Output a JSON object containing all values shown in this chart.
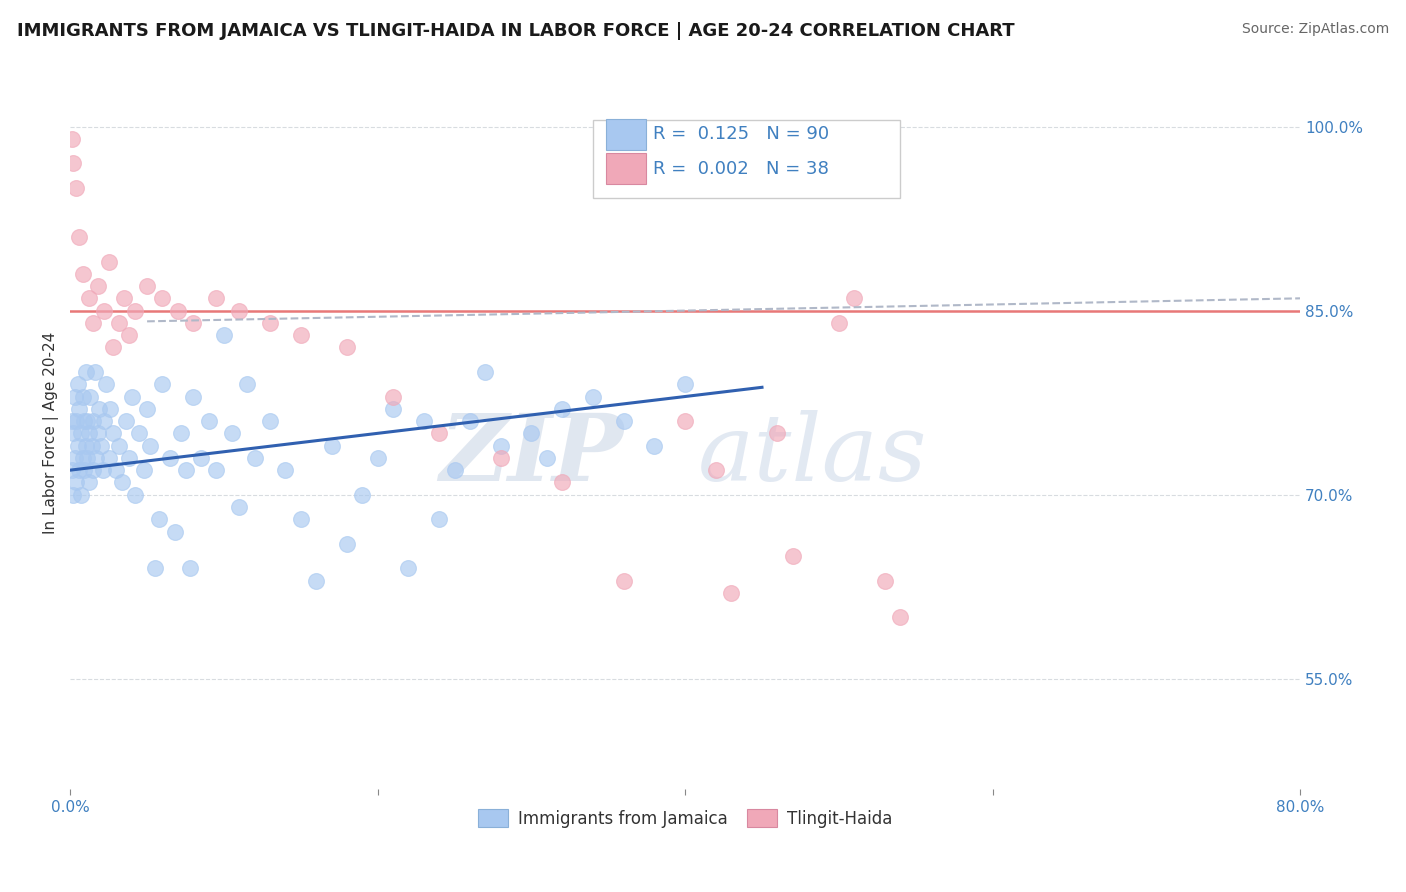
{
  "title": "IMMIGRANTS FROM JAMAICA VS TLINGIT-HAIDA IN LABOR FORCE | AGE 20-24 CORRELATION CHART",
  "source": "Source: ZipAtlas.com",
  "ylabel": "In Labor Force | Age 20-24",
  "xlim": [
    0.0,
    0.8
  ],
  "ylim": [
    0.46,
    1.04
  ],
  "xtick_vals": [
    0.0,
    0.2,
    0.4,
    0.6,
    0.8
  ],
  "xtick_labels": [
    "0.0%",
    "",
    "",
    "",
    "80.0%"
  ],
  "ytick_vals_right": [
    0.55,
    0.7,
    0.85,
    1.0
  ],
  "ytick_labels_right": [
    "55.0%",
    "70.0%",
    "85.0%",
    "100.0%"
  ],
  "legend_jamaica_R": "0.125",
  "legend_jamaica_N": "90",
  "legend_tlingit_R": "0.002",
  "legend_tlingit_N": "38",
  "legend_labels": [
    "Immigrants from Jamaica",
    "Tlingit-Haida"
  ],
  "blue_color": "#a8c8f0",
  "pink_color": "#f0a8b8",
  "trend_blue": "#3060b0",
  "trend_gray": "#b0b8c8",
  "hline_y": 0.85,
  "hline_color": "#e87878",
  "grid_color": "#d8dce0",
  "watermark_zip": "ZIP",
  "watermark_atlas": "atlas",
  "axis_label_color": "#4080c0",
  "title_color": "#1a1a1a",
  "source_color": "#666666"
}
